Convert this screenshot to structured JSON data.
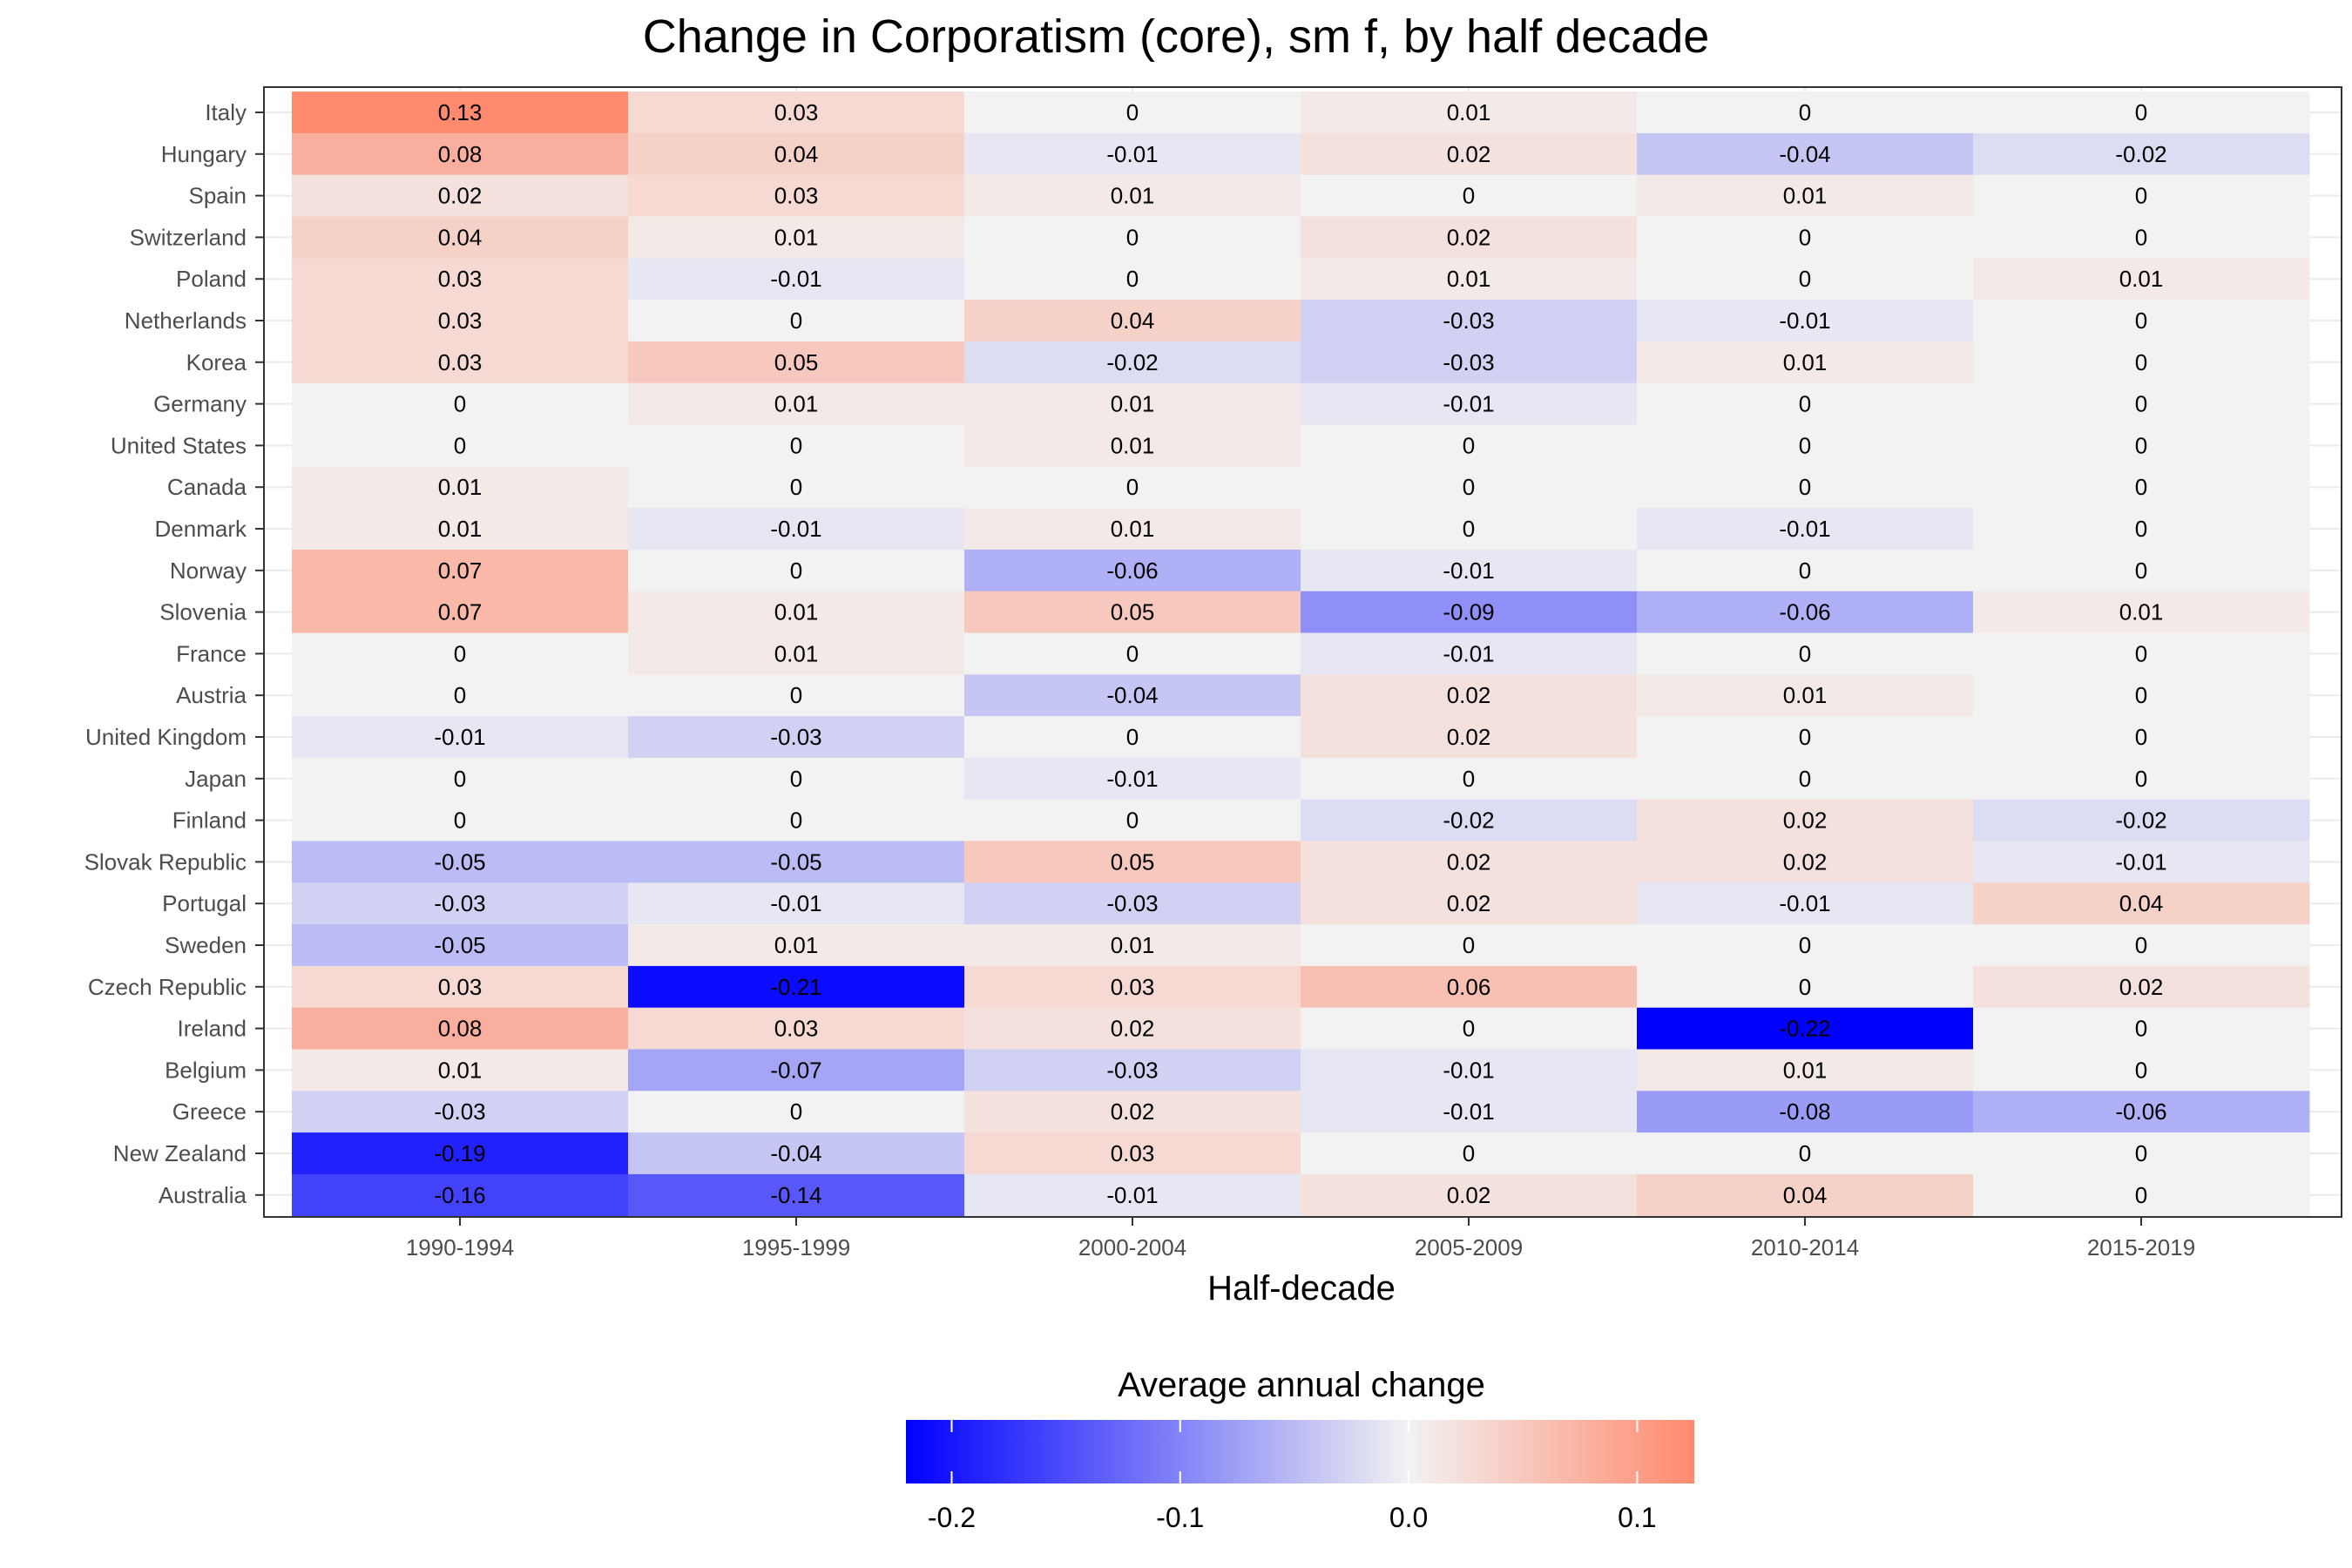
{
  "chart_data": {
    "type": "heatmap",
    "title": "Change in Corporatism (core), sm f, by half decade",
    "xlabel": "Half-decade",
    "ylabel": "",
    "columns": [
      "1990-1994",
      "1995-1999",
      "2000-2004",
      "2005-2009",
      "2010-2014",
      "2015-2019"
    ],
    "rows": [
      "Italy",
      "Hungary",
      "Spain",
      "Switzerland",
      "Poland",
      "Netherlands",
      "Korea",
      "Germany",
      "United States",
      "Canada",
      "Denmark",
      "Norway",
      "Slovenia",
      "France",
      "Austria",
      "United Kingdom",
      "Japan",
      "Finland",
      "Slovak Republic",
      "Portugal",
      "Sweden",
      "Czech Republic",
      "Ireland",
      "Belgium",
      "Greece",
      "New Zealand",
      "Australia"
    ],
    "values": [
      [
        0.13,
        0.03,
        0,
        0.01,
        0,
        0
      ],
      [
        0.08,
        0.04,
        -0.01,
        0.02,
        -0.04,
        -0.02
      ],
      [
        0.02,
        0.03,
        0.01,
        0,
        0.01,
        0
      ],
      [
        0.04,
        0.01,
        0,
        0.02,
        0,
        0
      ],
      [
        0.03,
        -0.01,
        0,
        0.01,
        0,
        0.01
      ],
      [
        0.03,
        0,
        0.04,
        -0.03,
        -0.01,
        0
      ],
      [
        0.03,
        0.05,
        -0.02,
        -0.03,
        0.01,
        0
      ],
      [
        0,
        0.01,
        0.01,
        -0.01,
        0,
        0
      ],
      [
        0,
        0,
        0.01,
        0,
        0,
        0
      ],
      [
        0.01,
        0,
        0,
        0,
        0,
        0
      ],
      [
        0.01,
        -0.01,
        0.01,
        0,
        -0.01,
        0
      ],
      [
        0.07,
        0,
        -0.06,
        -0.01,
        0,
        0
      ],
      [
        0.07,
        0.01,
        0.05,
        -0.09,
        -0.06,
        0.01
      ],
      [
        0,
        0.01,
        0,
        -0.01,
        0,
        0
      ],
      [
        0,
        0,
        -0.04,
        0.02,
        0.01,
        0
      ],
      [
        -0.01,
        -0.03,
        0,
        0.02,
        0,
        0
      ],
      [
        0,
        0,
        -0.01,
        0,
        0,
        0
      ],
      [
        0,
        0,
        0,
        -0.02,
        0.02,
        -0.02
      ],
      [
        -0.05,
        -0.05,
        0.05,
        0.02,
        0.02,
        -0.01
      ],
      [
        -0.03,
        -0.01,
        -0.03,
        0.02,
        -0.01,
        0.04
      ],
      [
        -0.05,
        0.01,
        0.01,
        0,
        0,
        0
      ],
      [
        0.03,
        -0.21,
        0.03,
        0.06,
        0,
        0.02
      ],
      [
        0.08,
        0.03,
        0.02,
        0,
        -0.22,
        0
      ],
      [
        0.01,
        -0.07,
        -0.03,
        -0.01,
        0.01,
        0
      ],
      [
        -0.03,
        0,
        0.02,
        -0.01,
        -0.08,
        -0.06
      ],
      [
        -0.19,
        -0.04,
        0.03,
        0,
        0,
        0
      ],
      [
        -0.16,
        -0.14,
        -0.01,
        0.02,
        0.04,
        0
      ]
    ],
    "legend": {
      "title": "Average annual change",
      "position": "bottom",
      "ticks": [
        "-0.2",
        "-0.1",
        "0.0",
        "0.1"
      ],
      "tick_values": [
        -0.2,
        -0.1,
        0,
        0.1
      ],
      "range": [
        -0.22,
        0.125
      ]
    },
    "colors": {
      "low": "#0000ff",
      "mid": "#f2f2f2",
      "high": "#ff8a6e"
    },
    "grid": true
  }
}
